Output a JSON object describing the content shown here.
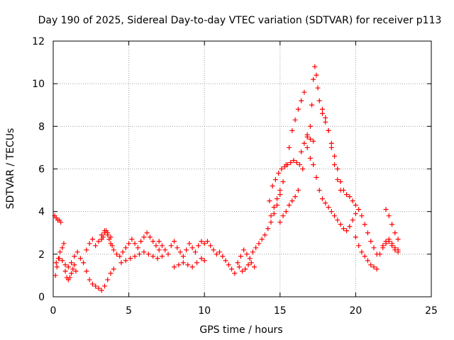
{
  "chart_data": {
    "type": "scatter",
    "title": "Day 190 of 2025, Sidereal Day-to-day VTEC variation (SDTVAR) for receiver p113",
    "xlabel": "GPS time / hours",
    "ylabel": "SDTVAR / TECUs",
    "xlim": [
      0,
      25
    ],
    "ylim": [
      0,
      12
    ],
    "xticks": [
      "0",
      "5",
      "10",
      "15",
      "20",
      "25"
    ],
    "yticks": [
      "0",
      "2",
      "4",
      "6",
      "8",
      "10",
      "12"
    ],
    "grid": true,
    "marker": "plus",
    "color": "#ff0000",
    "series": [
      {
        "name": "p113",
        "x": [
          0.1,
          0.2,
          0.3,
          0.4,
          0.5,
          0.15,
          0.25,
          0.35,
          0.45,
          0.6,
          0.7,
          0.8,
          0.9,
          1.0,
          1.1,
          1.2,
          1.3,
          1.4,
          1.5,
          0.2,
          0.4,
          0.6,
          0.8,
          1.0,
          1.2,
          1.4,
          1.6,
          1.8,
          2.0,
          2.2,
          2.4,
          2.6,
          2.8,
          3.0,
          3.2,
          3.4,
          3.6,
          3.8,
          4.0,
          2.2,
          2.4,
          2.6,
          2.8,
          3.0,
          3.2,
          3.4,
          3.6,
          3.8,
          3.2,
          3.3,
          3.4,
          3.5,
          3.6,
          3.7,
          3.8,
          3.9,
          4.0,
          4.2,
          4.4,
          4.6,
          4.8,
          5.0,
          5.2,
          5.4,
          5.6,
          5.8,
          6.0,
          6.2,
          6.4,
          6.6,
          6.8,
          7.0,
          4.5,
          4.8,
          5.1,
          5.4,
          5.7,
          6.0,
          6.3,
          6.6,
          6.9,
          7.2,
          7.0,
          7.2,
          7.4,
          7.6,
          7.8,
          8.0,
          8.2,
          8.4,
          8.6,
          8.8,
          9.0,
          9.2,
          9.4,
          9.6,
          9.8,
          10.0,
          8.0,
          8.3,
          8.6,
          8.9,
          9.2,
          9.5,
          9.8,
          10.0,
          10.2,
          10.4,
          10.6,
          10.8,
          11.0,
          11.2,
          11.4,
          11.6,
          11.8,
          12.0,
          12.2,
          12.4,
          12.6,
          12.8,
          13.0,
          13.2,
          13.4,
          13.6,
          13.8,
          14.0,
          14.2,
          14.4,
          14.6,
          14.8,
          15.0,
          12.3,
          12.5,
          12.7,
          12.9,
          13.1,
          13.3,
          14.3,
          14.5,
          14.7,
          14.9,
          15.1,
          15.3,
          15.5,
          15.7,
          15.9,
          16.1,
          16.3,
          16.5,
          14.4,
          14.6,
          14.8,
          15.0,
          15.2,
          15.4,
          15.6,
          15.8,
          16.0,
          16.2,
          16.4,
          16.6,
          16.8,
          17.0,
          17.2,
          15.0,
          15.2,
          15.4,
          15.6,
          15.8,
          16.0,
          16.2,
          16.4,
          16.6,
          16.8,
          17.0,
          17.1,
          17.2,
          17.3,
          17.4,
          17.5,
          17.6,
          17.8,
          18.0,
          18.2,
          18.4,
          18.6,
          18.8,
          19.0,
          16.8,
          17.0,
          17.2,
          17.4,
          17.6,
          17.8,
          18.0,
          18.2,
          18.4,
          18.6,
          18.8,
          19.0,
          19.2,
          19.4,
          19.6,
          19.8,
          20.0,
          17.8,
          18.0,
          18.2,
          18.4,
          18.6,
          18.8,
          19.0,
          19.2,
          19.4,
          19.6,
          19.8,
          20.0,
          20.2,
          20.4,
          20.6,
          20.8,
          21.0,
          21.2,
          21.4,
          20.0,
          20.2,
          20.4,
          20.6,
          20.8,
          21.0,
          21.2,
          21.4,
          21.6,
          21.8,
          22.0,
          22.2,
          22.4,
          22.6,
          22.8,
          21.8,
          22.0,
          22.2,
          22.4,
          22.6,
          22.8,
          22.0,
          22.2,
          22.4,
          22.6,
          22.8
        ],
        "y": [
          3.8,
          3.7,
          3.6,
          3.6,
          3.5,
          1.0,
          1.4,
          1.8,
          2.1,
          2.3,
          2.5,
          1.2,
          0.9,
          0.8,
          0.9,
          1.1,
          1.3,
          1.5,
          1.2,
          1.6,
          1.8,
          1.7,
          1.5,
          1.4,
          1.6,
          1.9,
          2.1,
          1.8,
          1.6,
          1.2,
          0.8,
          0.6,
          0.5,
          0.4,
          0.3,
          0.5,
          0.8,
          1.1,
          1.3,
          2.2,
          2.5,
          2.7,
          2.4,
          2.6,
          2.9,
          3.1,
          3.0,
          2.8,
          2.7,
          2.8,
          3.0,
          3.1,
          2.9,
          2.7,
          2.5,
          2.4,
          2.2,
          2.0,
          1.9,
          2.1,
          2.3,
          2.5,
          2.7,
          2.5,
          2.3,
          2.6,
          2.8,
          3.0,
          2.8,
          2.6,
          2.4,
          2.2,
          1.6,
          1.7,
          1.8,
          1.9,
          2.0,
          2.1,
          2.0,
          1.9,
          1.8,
          1.9,
          2.6,
          2.4,
          2.2,
          2.0,
          2.4,
          2.6,
          2.3,
          2.1,
          1.9,
          2.2,
          2.5,
          2.3,
          2.1,
          2.4,
          2.6,
          2.5,
          1.4,
          1.5,
          1.6,
          1.5,
          1.4,
          1.6,
          1.8,
          1.7,
          2.6,
          2.4,
          2.2,
          2.0,
          2.1,
          1.9,
          1.7,
          1.5,
          1.3,
          1.1,
          1.6,
          1.9,
          2.2,
          2.0,
          1.8,
          2.1,
          2.3,
          2.5,
          2.7,
          2.9,
          3.2,
          3.5,
          3.9,
          4.3,
          4.8,
          1.4,
          1.2,
          1.3,
          1.5,
          1.6,
          1.4,
          4.5,
          5.2,
          5.5,
          5.8,
          6.0,
          6.1,
          6.2,
          6.3,
          6.4,
          6.3,
          6.2,
          6.0,
          3.8,
          4.2,
          4.6,
          5.0,
          5.4,
          6.2,
          7.0,
          7.8,
          8.3,
          8.8,
          9.2,
          9.6,
          7.6,
          7.4,
          7.3,
          3.5,
          3.8,
          4.0,
          4.3,
          4.5,
          4.7,
          5.0,
          6.8,
          7.2,
          7.5,
          8.0,
          9.0,
          10.2,
          10.8,
          10.4,
          9.8,
          9.2,
          8.8,
          8.4,
          7.8,
          7.0,
          6.2,
          5.5,
          5.0,
          7.0,
          6.5,
          6.2,
          5.6,
          5.0,
          4.6,
          4.4,
          4.2,
          4.0,
          3.8,
          3.6,
          3.4,
          3.2,
          3.1,
          3.3,
          3.6,
          3.9,
          8.6,
          8.2,
          7.8,
          7.2,
          6.6,
          6.0,
          5.4,
          5.0,
          4.8,
          4.7,
          4.5,
          4.3,
          4.1,
          3.8,
          3.4,
          3.0,
          2.6,
          2.3,
          2.0,
          2.8,
          2.4,
          2.1,
          1.9,
          1.7,
          1.5,
          1.4,
          1.3,
          2.0,
          2.3,
          2.5,
          2.6,
          2.4,
          2.2,
          2.1,
          2.4,
          2.6,
          2.7,
          2.5,
          2.3,
          2.2,
          4.1,
          3.8,
          3.4,
          3.0,
          2.7
        ]
      }
    ]
  }
}
